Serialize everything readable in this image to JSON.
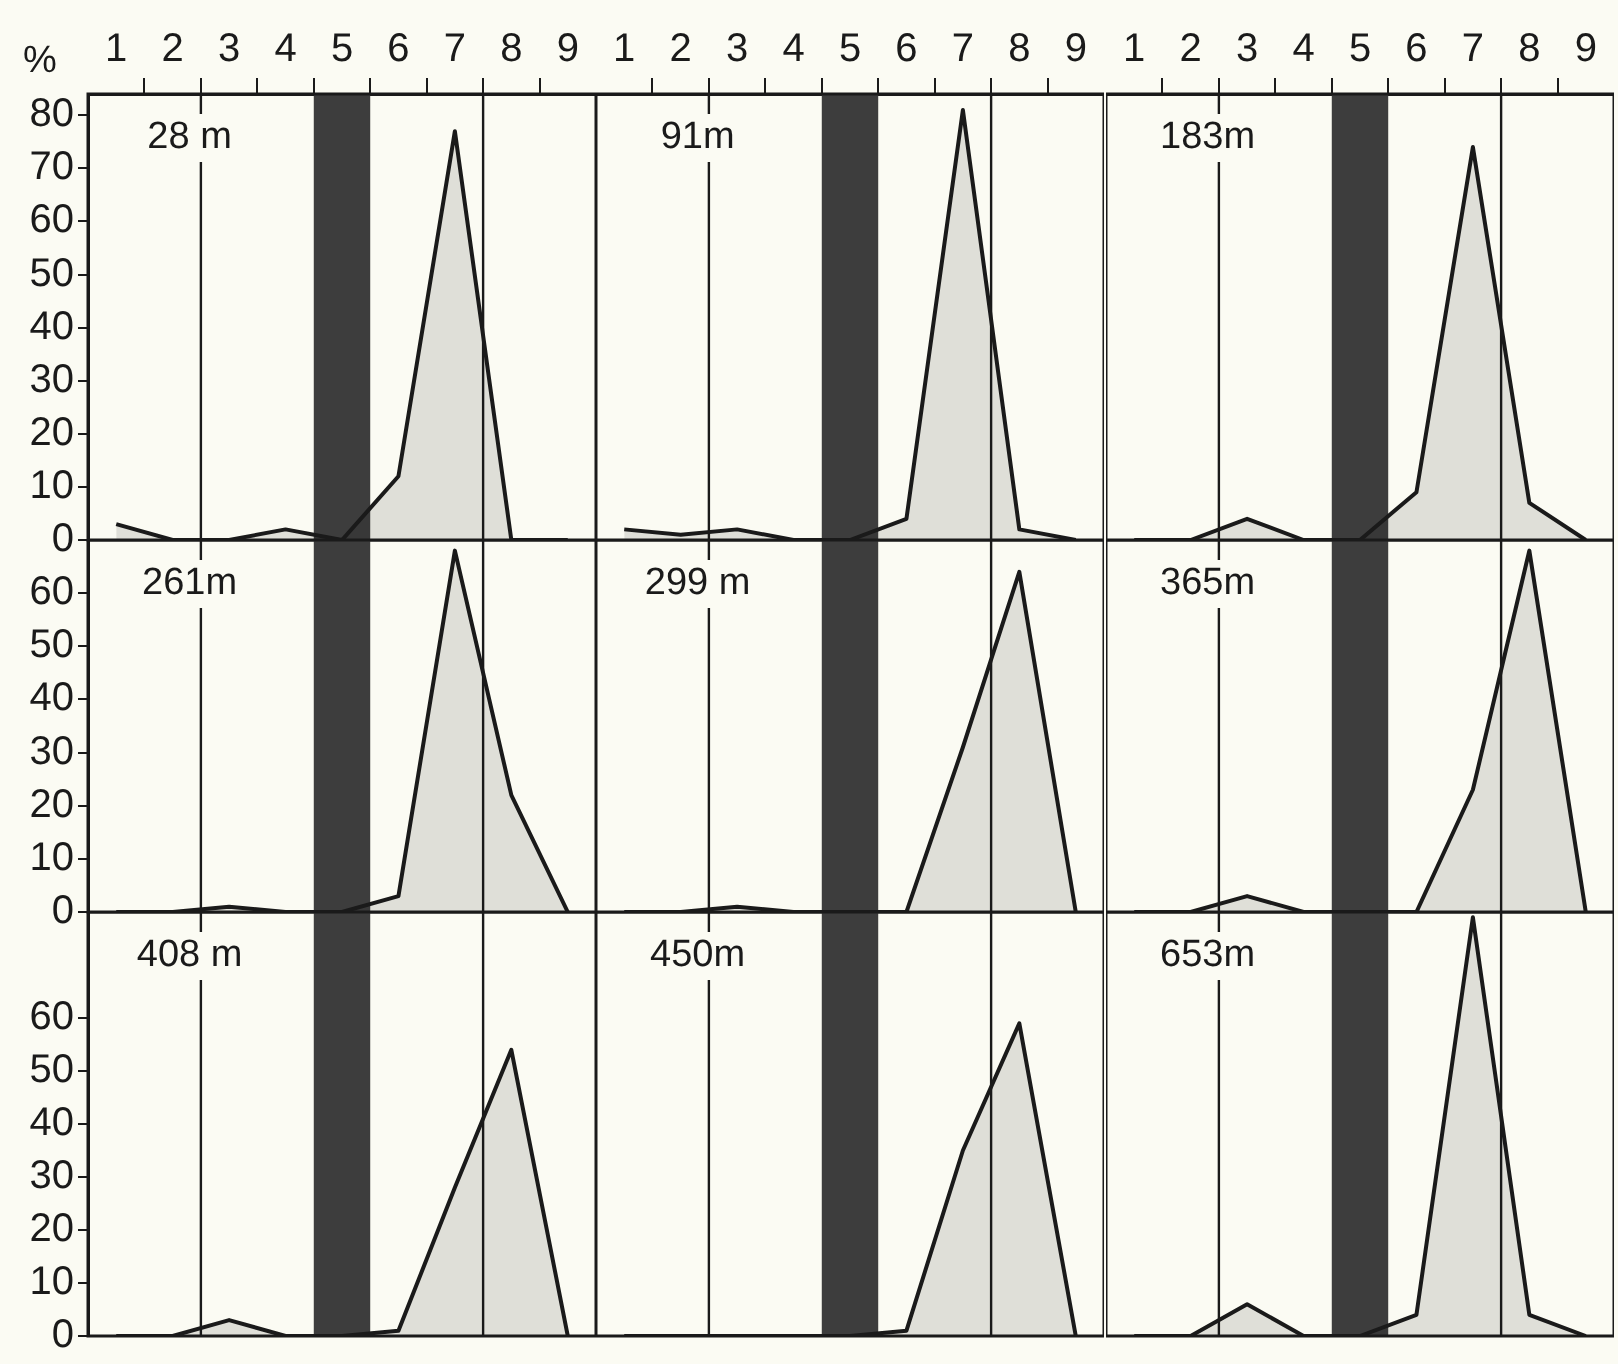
{
  "chart_data": [
    {
      "type": "area",
      "title": "28 m",
      "ylabel": "%",
      "x": [
        1,
        2,
        3,
        4,
        5,
        6,
        7,
        8,
        9
      ],
      "values": [
        3,
        0,
        0,
        2,
        0,
        12,
        77,
        0,
        0
      ],
      "color": "#1a1a1a",
      "xlim": [
        0.5,
        9.5
      ],
      "xticks": [
        1,
        {
          "value": 1.5,
          "label": null
        },
        2,
        {
          "value": 2.5,
          "label": null
        },
        3,
        {
          "value": 3.5,
          "label": null
        },
        4,
        {
          "value": 4.5,
          "label": null
        },
        5,
        {
          "value": 5.5,
          "label": null
        },
        6,
        {
          "value": 6.5,
          "label": null
        },
        7,
        {
          "value": 7.5,
          "label": null
        },
        8,
        {
          "value": 8.5,
          "label": null
        },
        9
      ],
      "ylim": [
        0,
        84
      ],
      "yticks": [
        0,
        10,
        20,
        30,
        40,
        50,
        60,
        70,
        80
      ],
      "ref_lines": [
        {
          "axis": "x",
          "value": 2.5,
          "color": "#1a1a1a"
        },
        {
          "axis": "x",
          "value": 7.5,
          "color": "#1a1a1a"
        }
      ],
      "bands": [
        {
          "axis": "x",
          "from": 4.5,
          "to": 5.5,
          "color": "#3d3d3d"
        }
      ]
    },
    {
      "type": "area",
      "title": "91m",
      "x": [
        1,
        2,
        3,
        4,
        5,
        6,
        7,
        8,
        9
      ],
      "values": [
        2,
        1,
        2,
        0,
        0,
        4,
        81,
        2,
        0
      ],
      "color": "#1a1a1a",
      "xlim": [
        0.5,
        9.5
      ],
      "xticks": [
        1,
        {
          "value": 1.5,
          "label": null
        },
        2,
        {
          "value": 2.5,
          "label": null
        },
        3,
        {
          "value": 3.5,
          "label": null
        },
        4,
        {
          "value": 4.5,
          "label": null
        },
        5,
        {
          "value": 5.5,
          "label": null
        },
        6,
        {
          "value": 6.5,
          "label": null
        },
        7,
        {
          "value": 7.5,
          "label": null
        },
        8,
        {
          "value": 8.5,
          "label": null
        },
        9
      ],
      "ylim": [
        0,
        84
      ],
      "yticks": [
        0,
        10,
        20,
        30,
        40,
        50,
        60,
        70,
        80
      ],
      "tick_labels": "x",
      "ref_lines": [
        {
          "axis": "x",
          "value": 2.5,
          "color": "#1a1a1a"
        },
        {
          "axis": "x",
          "value": 7.5,
          "color": "#1a1a1a"
        }
      ],
      "bands": [
        {
          "axis": "x",
          "from": 4.5,
          "to": 5.5,
          "color": "#3d3d3d"
        }
      ]
    },
    {
      "type": "area",
      "title": "183m",
      "x": [
        1,
        2,
        3,
        4,
        5,
        6,
        7,
        8,
        9
      ],
      "values": [
        0,
        0,
        4,
        0,
        0,
        9,
        74,
        7,
        0
      ],
      "color": "#1a1a1a",
      "xlim": [
        0.5,
        9.5
      ],
      "xticks": [
        1,
        {
          "value": 1.5,
          "label": null
        },
        2,
        {
          "value": 2.5,
          "label": null
        },
        3,
        {
          "value": 3.5,
          "label": null
        },
        4,
        {
          "value": 4.5,
          "label": null
        },
        5,
        {
          "value": 5.5,
          "label": null
        },
        6,
        {
          "value": 6.5,
          "label": null
        },
        7,
        {
          "value": 7.5,
          "label": null
        },
        8,
        {
          "value": 8.5,
          "label": null
        },
        9
      ],
      "ylim": [
        0,
        84
      ],
      "yticks": [
        0,
        10,
        20,
        30,
        40,
        50,
        60,
        70,
        80
      ],
      "tick_labels": "x",
      "ref_lines": [
        {
          "axis": "x",
          "value": 2.5,
          "color": "#1a1a1a"
        },
        {
          "axis": "x",
          "value": 7.5,
          "color": "#1a1a1a"
        }
      ],
      "bands": [
        {
          "axis": "x",
          "from": 4.5,
          "to": 5.5,
          "color": "#3d3d3d"
        }
      ]
    },
    {
      "type": "area",
      "title": "261m",
      "x": [
        1,
        2,
        3,
        4,
        5,
        6,
        7,
        8,
        9
      ],
      "values": [
        0,
        0,
        1,
        0,
        0,
        3,
        68,
        22,
        0
      ],
      "color": "#1a1a1a",
      "xlim": [
        0.5,
        9.5
      ],
      "ylim": [
        0,
        70
      ],
      "yticks": [
        0,
        10,
        20,
        30,
        40,
        50,
        60
      ],
      "tick_labels": "y",
      "ref_lines": [
        {
          "axis": "x",
          "value": 2.5,
          "color": "#1a1a1a"
        },
        {
          "axis": "x",
          "value": 7.5,
          "color": "#1a1a1a"
        }
      ],
      "bands": [
        {
          "axis": "x",
          "from": 4.5,
          "to": 5.5,
          "color": "#3d3d3d"
        }
      ]
    },
    {
      "type": "area",
      "title": "299 m",
      "x": [
        1,
        2,
        3,
        4,
        5,
        6,
        7,
        8,
        9
      ],
      "values": [
        0,
        0,
        1,
        0,
        0,
        0,
        31,
        64,
        0
      ],
      "color": "#1a1a1a",
      "xlim": [
        0.5,
        9.5
      ],
      "ylim": [
        0,
        70
      ],
      "yticks": [
        0,
        10,
        20,
        30,
        40,
        50,
        60
      ],
      "tick_labels": false,
      "ref_lines": [
        {
          "axis": "x",
          "value": 2.5,
          "color": "#1a1a1a"
        },
        {
          "axis": "x",
          "value": 7.5,
          "color": "#1a1a1a"
        }
      ],
      "bands": [
        {
          "axis": "x",
          "from": 4.5,
          "to": 5.5,
          "color": "#3d3d3d"
        }
      ]
    },
    {
      "type": "area",
      "title": "365m",
      "x": [
        1,
        2,
        3,
        4,
        5,
        6,
        7,
        8,
        9
      ],
      "values": [
        0,
        0,
        3,
        0,
        0,
        0,
        23,
        68,
        0
      ],
      "color": "#1a1a1a",
      "xlim": [
        0.5,
        9.5
      ],
      "ylim": [
        0,
        70
      ],
      "yticks": [
        0,
        10,
        20,
        30,
        40,
        50,
        60
      ],
      "tick_labels": false,
      "ref_lines": [
        {
          "axis": "x",
          "value": 2.5,
          "color": "#1a1a1a"
        },
        {
          "axis": "x",
          "value": 7.5,
          "color": "#1a1a1a"
        }
      ],
      "bands": [
        {
          "axis": "x",
          "from": 4.5,
          "to": 5.5,
          "color": "#3d3d3d"
        }
      ]
    },
    {
      "type": "area",
      "title": "408 m",
      "x": [
        1,
        2,
        3,
        4,
        5,
        6,
        7,
        8,
        9
      ],
      "values": [
        0,
        0,
        3,
        0,
        0,
        1,
        28,
        54,
        0
      ],
      "color": "#1a1a1a",
      "xlim": [
        0.5,
        9.5
      ],
      "ylim": [
        0,
        80
      ],
      "yticks": [
        0,
        10,
        20,
        30,
        40,
        50,
        60
      ],
      "tick_labels": "y",
      "ref_lines": [
        {
          "axis": "x",
          "value": 2.5,
          "color": "#1a1a1a"
        },
        {
          "axis": "x",
          "value": 7.5,
          "color": "#1a1a1a"
        }
      ],
      "bands": [
        {
          "axis": "x",
          "from": 4.5,
          "to": 5.5,
          "color": "#3d3d3d"
        }
      ]
    },
    {
      "type": "area",
      "title": "450m",
      "x": [
        1,
        2,
        3,
        4,
        5,
        6,
        7,
        8,
        9
      ],
      "values": [
        0,
        0,
        0,
        0,
        0,
        1,
        35,
        59,
        0
      ],
      "color": "#1a1a1a",
      "xlim": [
        0.5,
        9.5
      ],
      "ylim": [
        0,
        80
      ],
      "yticks": [
        0,
        10,
        20,
        30,
        40,
        50,
        60
      ],
      "tick_labels": false,
      "ref_lines": [
        {
          "axis": "x",
          "value": 2.5,
          "color": "#1a1a1a"
        },
        {
          "axis": "x",
          "value": 7.5,
          "color": "#1a1a1a"
        }
      ],
      "bands": [
        {
          "axis": "x",
          "from": 4.5,
          "to": 5.5,
          "color": "#3d3d3d"
        }
      ]
    },
    {
      "type": "area",
      "title": "653m",
      "x": [
        1,
        2,
        3,
        4,
        5,
        6,
        7,
        8,
        9
      ],
      "values": [
        0,
        0,
        6,
        0,
        0,
        4,
        79,
        4,
        0
      ],
      "color": "#1a1a1a",
      "xlim": [
        0.5,
        9.5
      ],
      "ylim": [
        0,
        80
      ],
      "yticks": [
        0,
        10,
        20,
        30,
        40,
        50,
        60
      ],
      "tick_labels": false,
      "ref_lines": [
        {
          "axis": "x",
          "value": 2.5,
          "color": "#1a1a1a"
        },
        {
          "axis": "x",
          "value": 7.5,
          "color": "#1a1a1a"
        }
      ],
      "bands": [
        {
          "axis": "x",
          "from": 4.5,
          "to": 5.5,
          "color": "#3d3d3d"
        }
      ]
    }
  ]
}
